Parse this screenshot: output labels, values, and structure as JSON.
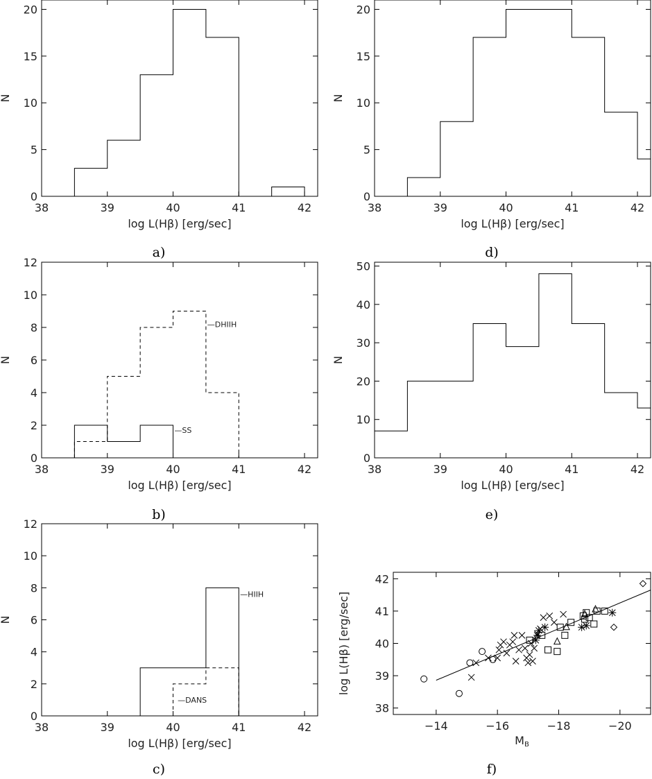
{
  "chart_data": [
    {
      "id": "a",
      "type": "histogram",
      "panel_label": "a)",
      "xlabel": "log L(Hβ) [erg/sec]",
      "ylabel": "N",
      "xlim": [
        38,
        42.2
      ],
      "ylim": [
        0,
        21
      ],
      "xticks": [
        38,
        39,
        40,
        41,
        42
      ],
      "yticks": [
        0,
        5,
        10,
        15,
        20
      ],
      "series": [
        {
          "style": "solid",
          "edges": [
            38.5,
            39.0,
            39.5,
            40.0,
            40.5,
            41.0,
            41.5,
            42.0
          ],
          "values": [
            3,
            6,
            13,
            20,
            17,
            0,
            1
          ]
        }
      ],
      "annotations": []
    },
    {
      "id": "b",
      "type": "histogram",
      "panel_label": "b)",
      "xlabel": "log L(Hβ) [erg/sec]",
      "ylabel": "N",
      "xlim": [
        38,
        42.2
      ],
      "ylim": [
        0,
        12
      ],
      "xticks": [
        38,
        39,
        40,
        41,
        42
      ],
      "yticks": [
        0,
        2,
        4,
        6,
        8,
        10,
        12
      ],
      "series": [
        {
          "name": "SS",
          "style": "solid",
          "edges": [
            38.5,
            39.0,
            39.5,
            40.0
          ],
          "values": [
            2,
            1,
            2
          ]
        },
        {
          "name": "DHIIH",
          "style": "dashed",
          "edges": [
            38.5,
            39.0,
            39.5,
            40.0,
            40.5,
            41.0
          ],
          "values": [
            1,
            5,
            8,
            9,
            4
          ]
        }
      ],
      "annotations": [
        {
          "text": "—SS",
          "x": 40.02,
          "y": 1.7
        },
        {
          "text": "—DHIIH",
          "x": 40.52,
          "y": 8.2
        }
      ]
    },
    {
      "id": "c",
      "type": "histogram",
      "panel_label": "c)",
      "xlabel": "log L(Hβ) [erg/sec]",
      "ylabel": "N",
      "xlim": [
        38,
        42.2
      ],
      "ylim": [
        0,
        12
      ],
      "xticks": [
        38,
        39,
        40,
        41,
        42
      ],
      "yticks": [
        0,
        2,
        4,
        6,
        8,
        10,
        12
      ],
      "series": [
        {
          "name": "HIIH",
          "style": "solid",
          "edges": [
            39.5,
            40.5,
            41.0
          ],
          "values": [
            3,
            8
          ]
        },
        {
          "name": "DANS",
          "style": "dashed",
          "edges": [
            40.0,
            40.5,
            41.0
          ],
          "values": [
            2,
            3
          ]
        }
      ],
      "annotations": [
        {
          "text": "—HIIH",
          "x": 41.02,
          "y": 7.6
        },
        {
          "text": "—DANS",
          "x": 40.07,
          "y": 1.0
        }
      ]
    },
    {
      "id": "d",
      "type": "histogram",
      "panel_label": "d)",
      "xlabel": "log L(Hβ) [erg/sec]",
      "ylabel": "N",
      "xlim": [
        38,
        42.2
      ],
      "ylim": [
        0,
        21
      ],
      "xticks": [
        38,
        39,
        40,
        41,
        42
      ],
      "yticks": [
        0,
        5,
        10,
        15,
        20
      ],
      "series": [
        {
          "style": "solid",
          "edges": [
            38.5,
            39.0,
            39.5,
            40.0,
            41.0,
            41.5,
            42.0,
            42.2
          ],
          "values": [
            2,
            8,
            17,
            20,
            17,
            9,
            4
          ]
        }
      ],
      "annotations": []
    },
    {
      "id": "e",
      "type": "histogram",
      "panel_label": "e)",
      "xlabel": "log L(Hβ) [erg/sec]",
      "ylabel": "N",
      "xlim": [
        38,
        42.2
      ],
      "ylim": [
        0,
        51
      ],
      "xticks": [
        38,
        39,
        40,
        41,
        42
      ],
      "yticks": [
        0,
        10,
        20,
        30,
        40,
        50
      ],
      "series": [
        {
          "style": "solid",
          "edges": [
            38.0,
            38.5,
            39.5,
            40.0,
            40.5,
            41.0,
            41.5,
            42.0,
            42.2
          ],
          "values": [
            7,
            20,
            35,
            29,
            48,
            35,
            17,
            13
          ]
        }
      ],
      "annotations": []
    },
    {
      "id": "f",
      "type": "scatter",
      "panel_label": "f)",
      "xlabel": "M",
      "xlabel_sub": "B",
      "ylabel": "log L(Hβ) [erg/sec]",
      "xlim": [
        -12.6,
        -21.0
      ],
      "ylim": [
        37.8,
        42.2
      ],
      "xticks": [
        -14,
        -16,
        -18,
        -20
      ],
      "yticks": [
        38,
        39,
        40,
        41,
        42
      ],
      "fit_line": {
        "x": [
          -14.0,
          -21.0
        ],
        "y": [
          38.86,
          41.65
        ]
      },
      "series": [
        {
          "marker": "circle",
          "points": [
            [
              -13.6,
              38.9
            ],
            [
              -14.75,
              38.45
            ],
            [
              -15.1,
              39.4
            ],
            [
              -15.85,
              39.5
            ],
            [
              -15.5,
              39.75
            ]
          ]
        },
        {
          "marker": "x",
          "points": [
            [
              -15.15,
              38.95
            ],
            [
              -15.3,
              39.4
            ],
            [
              -15.7,
              39.55
            ],
            [
              -16.0,
              39.55
            ],
            [
              -16.1,
              39.95
            ],
            [
              -16.3,
              39.7
            ],
            [
              -16.4,
              39.95
            ],
            [
              -16.5,
              40.05
            ],
            [
              -16.55,
              40.25
            ],
            [
              -16.6,
              39.45
            ],
            [
              -16.7,
              39.8
            ],
            [
              -16.8,
              40.25
            ],
            [
              -16.9,
              39.85
            ],
            [
              -16.95,
              39.55
            ],
            [
              -17.0,
              39.4
            ],
            [
              -17.05,
              39.65
            ],
            [
              -17.1,
              40.0
            ],
            [
              -17.2,
              39.85
            ],
            [
              -17.3,
              40.3
            ],
            [
              -17.4,
              40.45
            ],
            [
              -17.5,
              40.8
            ],
            [
              -17.7,
              40.85
            ],
            [
              -17.85,
              40.65
            ],
            [
              -18.15,
              40.9
            ],
            [
              -16.05,
              39.8
            ],
            [
              -16.2,
              40.05
            ],
            [
              -17.15,
              39.45
            ]
          ]
        },
        {
          "marker": "asterisk",
          "points": [
            [
              -17.25,
              40.1
            ],
            [
              -17.35,
              40.4
            ],
            [
              -17.55,
              40.5
            ],
            [
              -17.3,
              40.25
            ],
            [
              -18.75,
              40.5
            ],
            [
              -18.9,
              40.55
            ],
            [
              -19.75,
              40.95
            ]
          ]
        },
        {
          "marker": "square",
          "points": [
            [
              -17.05,
              40.1
            ],
            [
              -17.45,
              40.25
            ],
            [
              -17.65,
              39.8
            ],
            [
              -17.95,
              39.75
            ],
            [
              -18.05,
              40.5
            ],
            [
              -18.2,
              40.25
            ],
            [
              -18.4,
              40.65
            ],
            [
              -18.8,
              40.85
            ],
            [
              -18.85,
              40.75
            ],
            [
              -18.9,
              40.95
            ],
            [
              -19.0,
              40.8
            ],
            [
              -19.15,
              40.6
            ],
            [
              -19.25,
              41.0
            ],
            [
              -19.5,
              41.0
            ]
          ]
        },
        {
          "marker": "triangle",
          "points": [
            [
              -17.95,
              40.05
            ],
            [
              -18.25,
              40.5
            ],
            [
              -18.85,
              40.9
            ],
            [
              -19.2,
              41.05
            ]
          ]
        },
        {
          "marker": "diamond",
          "points": [
            [
              -19.8,
              40.5
            ],
            [
              -20.75,
              41.85
            ]
          ]
        }
      ]
    }
  ]
}
